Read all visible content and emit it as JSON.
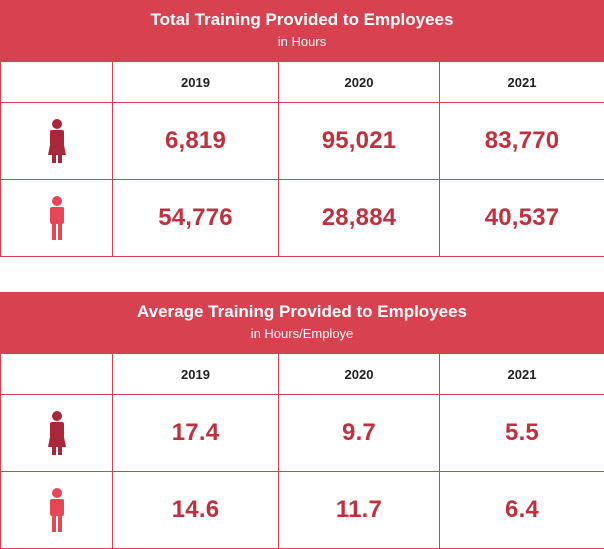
{
  "colors": {
    "accent": "#d8414f",
    "value_text": "#c0303e",
    "icon_dark": "#a8283a",
    "icon_light": "#e64656"
  },
  "tables": [
    {
      "title": "Total Training Provided to Employees",
      "subtitle": "in Hours",
      "years": [
        "2019",
        "2020",
        "2021"
      ],
      "rows": [
        {
          "icon": "female-person-icon",
          "values": [
            "6,819",
            "95,021",
            "83,770"
          ]
        },
        {
          "icon": "male-person-icon",
          "values": [
            "54,776",
            "28,884",
            "40,537"
          ]
        }
      ]
    },
    {
      "title": "Average Training Provided to Employees",
      "subtitle": "in Hours/Employe",
      "years": [
        "2019",
        "2020",
        "2021"
      ],
      "rows": [
        {
          "icon": "female-person-icon",
          "values": [
            "17.4",
            "9.7",
            "5.5"
          ]
        },
        {
          "icon": "male-person-icon",
          "values": [
            "14.6",
            "11.7",
            "6.4"
          ]
        }
      ]
    }
  ]
}
